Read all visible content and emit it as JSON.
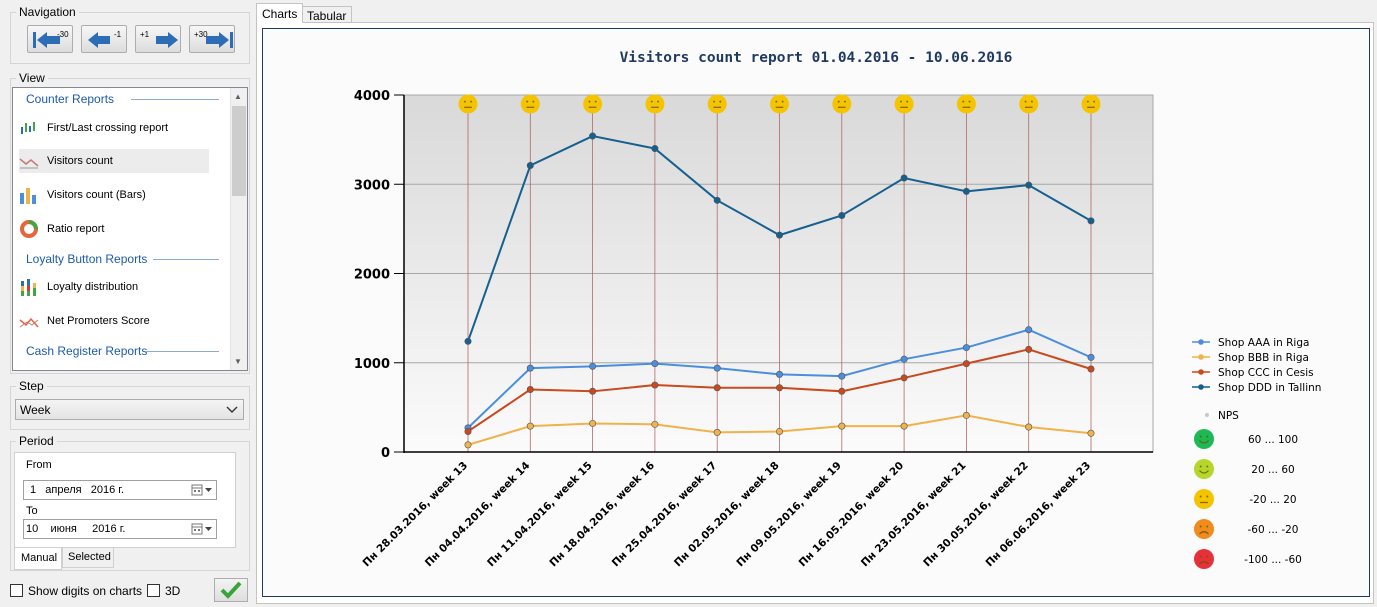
{
  "navigation": {
    "title": "Navigation",
    "buttons": [
      {
        "label": "-30",
        "icon": "arrow-left-first-icon"
      },
      {
        "label": "-1",
        "icon": "arrow-left-icon"
      },
      {
        "label": "+1",
        "icon": "arrow-right-icon"
      },
      {
        "label": "+30",
        "icon": "arrow-right-last-icon"
      }
    ]
  },
  "view": {
    "title": "View",
    "sections": [
      {
        "heading": "Counter Reports",
        "items": [
          {
            "label": "First/Last crossing report",
            "icon": "bars-icon"
          },
          {
            "label": "Visitors count",
            "icon": "line-chart-icon",
            "selected": true
          },
          {
            "label": "Visitors count (Bars)",
            "icon": "bar-chart-icon"
          },
          {
            "label": "Ratio report",
            "icon": "donut-icon"
          }
        ]
      },
      {
        "heading": "Loyalty Button Reports",
        "items": [
          {
            "label": "Loyalty distribution",
            "icon": "stacked-bars-icon"
          },
          {
            "label": "Net Promoters Score",
            "icon": "line-chart-icon"
          }
        ]
      },
      {
        "heading": "Cash Register Reports",
        "items": []
      }
    ]
  },
  "step": {
    "title": "Step",
    "value": "Week"
  },
  "period": {
    "title": "Period",
    "from_label": "From",
    "from_value": "1   апреля   2016 г.",
    "to_label": "To",
    "to_value": "10    июня     2016 г.",
    "tabs": [
      "Manual",
      "Selected"
    ]
  },
  "options": {
    "show_digits": "Show digits on charts",
    "three_d": "3D"
  },
  "tabs": [
    "Charts",
    "Tabular"
  ],
  "colors": {
    "aaa": "#4a8ede",
    "bbb": "#f0b24a",
    "ccc": "#c84a1e",
    "ddd": "#15608f",
    "accent": "#1e5aa8"
  },
  "chart_data": {
    "type": "line",
    "title": "Visitors count report 01.04.2016 - 10.06.2016",
    "categories": [
      "Пн 28.03.2016,  week 13",
      "Пн 04.04.2016,  week 14",
      "Пн 11.04.2016,  week 15",
      "Пн 18.04.2016,  week 16",
      "Пн 25.04.2016,  week 17",
      "Пн 02.05.2016,  week 18",
      "Пн 09.05.2016,  week 19",
      "Пн 16.05.2016,  week 20",
      "Пн 23.05.2016,  week 21",
      "Пн 30.05.2016,  week 22",
      "Пн 06.06.2016,  week 23"
    ],
    "ylim": [
      0,
      4000
    ],
    "yticks": [
      "0",
      "1000",
      "2000",
      "3000",
      "4000"
    ],
    "series": [
      {
        "name": "Shop AAA in Riga",
        "color": "#4a8ede",
        "values": [
          270,
          940,
          960,
          990,
          940,
          870,
          850,
          1040,
          1170,
          1370,
          1060
        ]
      },
      {
        "name": "Shop BBB in Riga",
        "color": "#f0b24a",
        "values": [
          80,
          290,
          320,
          310,
          220,
          230,
          290,
          290,
          410,
          280,
          210
        ]
      },
      {
        "name": "Shop CCC in Cesis",
        "color": "#c84a1e",
        "values": [
          230,
          700,
          680,
          750,
          720,
          720,
          680,
          830,
          990,
          1150,
          930
        ]
      },
      {
        "name": "Shop DDD in Tallinn",
        "color": "#15608f",
        "values": [
          1240,
          3210,
          3540,
          3400,
          2820,
          2430,
          2650,
          3070,
          2920,
          2990,
          2590
        ]
      }
    ],
    "nps_mood": [
      "neutral",
      "neutral",
      "neutral",
      "neutral",
      "neutral",
      "neutral",
      "neutral",
      "neutral",
      "neutral",
      "neutral",
      "neutral"
    ],
    "nps_legend": {
      "label": "NPS",
      "ranges": [
        {
          "range": "60 ... 100",
          "mood": "happy",
          "color": "#1db954"
        },
        {
          "range": "20 ... 60",
          "mood": "happy",
          "color": "#b5d62a"
        },
        {
          "range": "-20 ... 20",
          "mood": "neutral",
          "color": "#f5c400"
        },
        {
          "range": "-60 ... -20",
          "mood": "sad",
          "color": "#f08c1e"
        },
        {
          "range": "-100 ... -60",
          "mood": "sad",
          "color": "#e8303a"
        }
      ]
    },
    "legend_position": "right",
    "grid": true
  }
}
